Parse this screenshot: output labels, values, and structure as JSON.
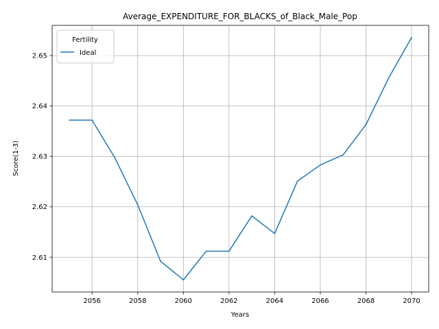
{
  "chart_data": {
    "type": "line",
    "title": "Average_EXPENDITURE_FOR_BLACKS_of_Black_Male_Pop",
    "xlabel": "Years",
    "ylabel": "Score(1-3)",
    "x": [
      2055,
      2056,
      2057,
      2058,
      2059,
      2060,
      2061,
      2062,
      2063,
      2064,
      2065,
      2066,
      2067,
      2068,
      2069,
      2070
    ],
    "series": [
      {
        "name": "Ideal",
        "color": "#1f77b4",
        "values": [
          2.6372,
          2.6372,
          2.6297,
          2.6204,
          2.6092,
          2.6055,
          2.6112,
          2.6112,
          2.6182,
          2.6147,
          2.6251,
          2.6283,
          2.6303,
          2.6363,
          2.6456,
          2.6536
        ]
      }
    ],
    "xlim": [
      2054.25,
      2070.75
    ],
    "ylim": [
      2.6031,
      2.656
    ],
    "xticks": [
      "2056",
      "2058",
      "2060",
      "2062",
      "2064",
      "2066",
      "2068",
      "2070"
    ],
    "yticks": [
      "2.61",
      "2.62",
      "2.63",
      "2.64",
      "2.65"
    ],
    "grid": true,
    "legend": {
      "title": "Fertility",
      "placement": "top-left"
    }
  }
}
